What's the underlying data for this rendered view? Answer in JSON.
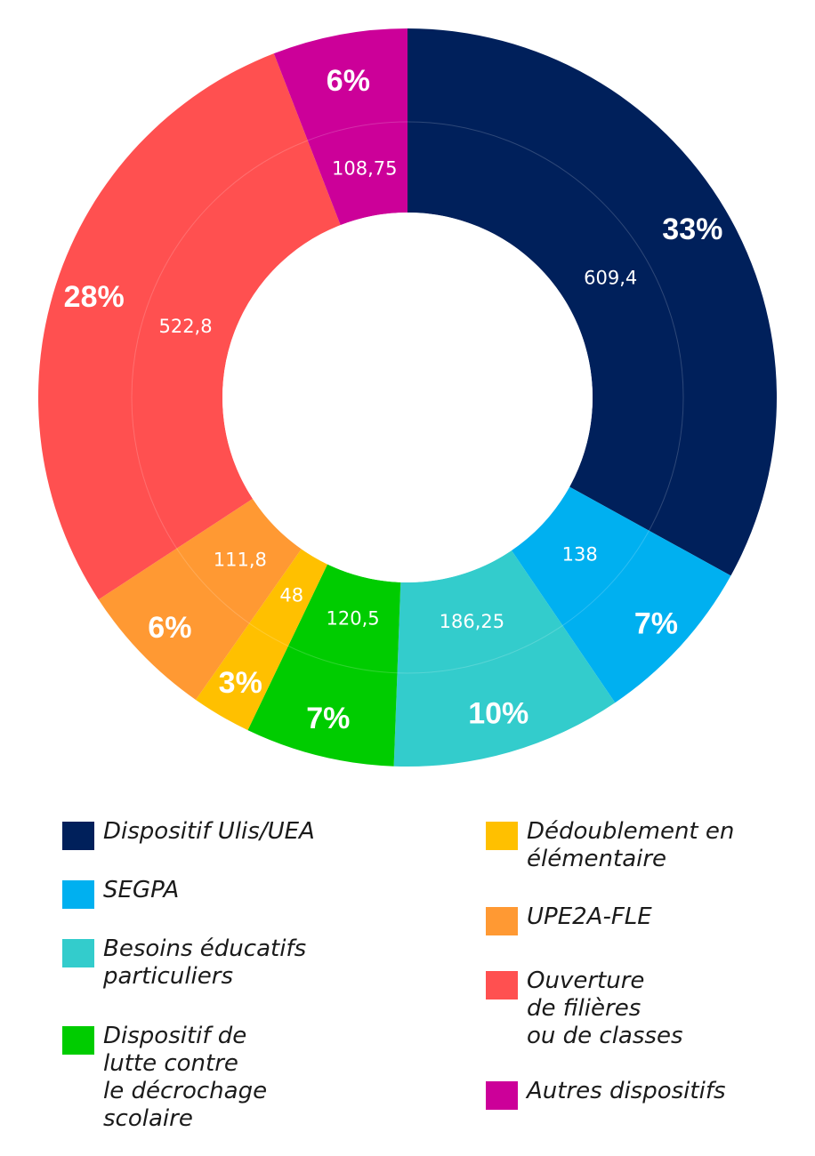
{
  "chart_data": {
    "type": "donut",
    "segments": [
      {
        "name": "Dispositif Ulis/UEA",
        "value": 609.4,
        "value_label": "609,4",
        "percent_label": "33%",
        "color": "#00205b"
      },
      {
        "name": "SEGPA",
        "value": 138,
        "value_label": "138",
        "percent_label": "7%",
        "color": "#00b0f0"
      },
      {
        "name": "Besoins éducatifs\nparticuliers",
        "value": 186.25,
        "value_label": "186,25",
        "percent_label": "10%",
        "color": "#33cccc"
      },
      {
        "name": "Dispositif de\nlutte contre\nle décrochage\nscolaire",
        "value": 120.5,
        "value_label": "120,5",
        "percent_label": "7%",
        "color": "#00cc00"
      },
      {
        "name": "Dédoublement en\nélémentaire",
        "value": 48,
        "value_label": "48",
        "percent_label": "3%",
        "color": "#ffc000"
      },
      {
        "name": "UPE2A-FLE",
        "value": 111.8,
        "value_label": "111,8",
        "percent_label": "6%",
        "color": "#ff9933"
      },
      {
        "name": "Ouverture\nde filières\nou de classes",
        "value": 522.8,
        "value_label": "522,8",
        "percent_label": "28%",
        "color": "#ff5050"
      },
      {
        "name": "Autres dispositifs",
        "value": 108.75,
        "value_label": "108,75",
        "percent_label": "6%",
        "color": "#cc0099"
      }
    ],
    "legend_position": "bottom"
  }
}
